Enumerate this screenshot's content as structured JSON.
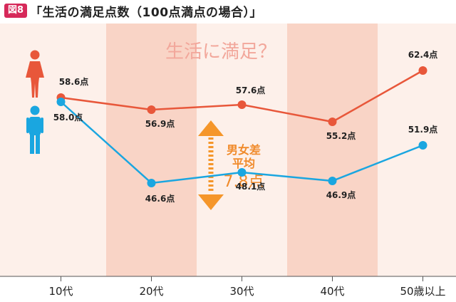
{
  "header": {
    "badge": "図8",
    "title": "「生活の満足点数（100点満点の場合）」"
  },
  "annotations": {
    "headline": "生活に満足？",
    "gap_line1": "男女差",
    "gap_line2": "平均",
    "gap_value": "7.8点"
  },
  "colors": {
    "female": "#e8573a",
    "male": "#1aa6e0",
    "band_shaded": "#f9d4c6",
    "band_light": "#fdf0ea",
    "arrow": "#f5962a",
    "headline": "#f2a79b",
    "gap_text": "#f08a2a"
  },
  "icons": {
    "female": "female-person-icon",
    "male": "male-person-icon",
    "gap": "double-arrow-icon"
  },
  "chart_data": {
    "type": "line",
    "categories": [
      "10代",
      "20代",
      "30代",
      "40代",
      "50歳以上"
    ],
    "series": [
      {
        "name": "",
        "gender": "female",
        "values": [
          58.6,
          56.9,
          57.6,
          55.2,
          62.4
        ],
        "labels": [
          "58.6点",
          "56.9点",
          "57.6点",
          "55.2点",
          "62.4点"
        ]
      },
      {
        "name": "",
        "gender": "male",
        "values": [
          58.0,
          46.6,
          48.1,
          46.9,
          51.9
        ],
        "labels": [
          "58.0点",
          "46.6点",
          "48.1点",
          "46.9点",
          "51.9点"
        ]
      }
    ],
    "title": "",
    "xlabel": "",
    "ylabel": "",
    "ylim": [
      40,
      65
    ],
    "grid": false
  }
}
